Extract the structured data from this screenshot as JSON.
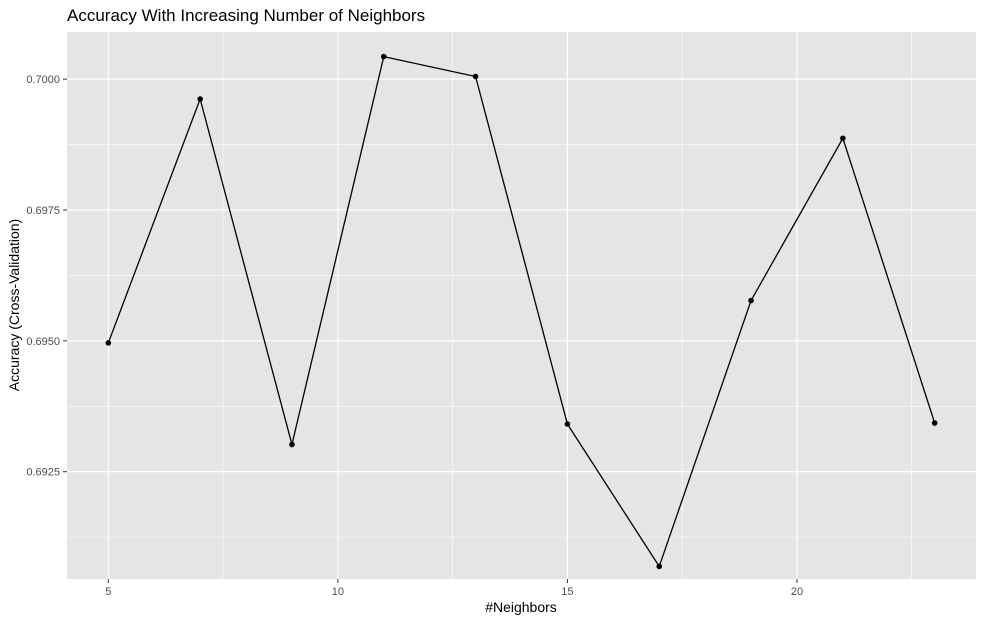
{
  "chart_data": {
    "type": "line",
    "title": "Accuracy With Increasing Number of Neighbors",
    "xlabel": "#Neighbors",
    "ylabel": "Accuracy (Cross-Validation)",
    "x": [
      5,
      7,
      9,
      11,
      13,
      15,
      17,
      19,
      21,
      23
    ],
    "y": [
      0.69496,
      0.69962,
      0.69302,
      0.70043,
      0.70005,
      0.69341,
      0.69069,
      0.69577,
      0.69887,
      0.69343
    ],
    "xlim": [
      4.1,
      23.9
    ],
    "ylim": [
      0.69045,
      0.7009
    ],
    "x_ticks": [
      5,
      10,
      15,
      20
    ],
    "x_tick_labels": [
      "5",
      "10",
      "15",
      "20"
    ],
    "y_ticks": [
      0.6925,
      0.695,
      0.6975,
      0.7
    ],
    "y_tick_labels": [
      "0.6925",
      "0.6950",
      "0.6975",
      "0.7000"
    ],
    "grid": true,
    "legend": "none",
    "colors": {
      "panel_background": "#e5e5e5",
      "grid": "#ffffff",
      "line": "#000000",
      "point": "#000000"
    }
  }
}
